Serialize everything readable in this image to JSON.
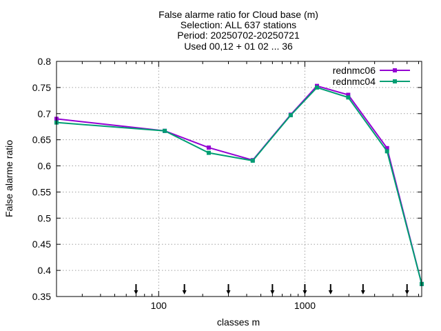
{
  "chart_data": {
    "type": "line",
    "title_lines": [
      "False alarme ratio  for Cloud base (m)",
      "Selection: ALL    637 stations",
      "Period: 20250702-20250721",
      "Used 00,12 + 01 02 ... 36"
    ],
    "xlabel": "classes m",
    "ylabel": "False alarme ratio",
    "x_scale": "log",
    "xlim": [
      20,
      6300
    ],
    "ylim": [
      0.35,
      0.8
    ],
    "x_ticks": [
      100,
      1000
    ],
    "x_tick_labels": [
      "100",
      "1000"
    ],
    "y_ticks": [
      0.35,
      0.4,
      0.45,
      0.5,
      0.55,
      0.6,
      0.65,
      0.7,
      0.75,
      0.8
    ],
    "y_tick_labels": [
      "0.35",
      "0.4",
      "0.45",
      "0.5",
      "0.55",
      "0.6",
      "0.65",
      "0.7",
      "0.75",
      "0.8"
    ],
    "grid": true,
    "legend_position": "top-right",
    "x": [
      20,
      110,
      220,
      440,
      800,
      1210,
      1980,
      3650,
      6300
    ],
    "series": [
      {
        "name": "rednmc06",
        "color": "#9400d3",
        "values": [
          0.69,
          0.667,
          0.635,
          0.611,
          0.698,
          0.753,
          0.736,
          0.634,
          0.374
        ]
      },
      {
        "name": "rednmc04",
        "color": "#009e73",
        "values": [
          0.683,
          0.667,
          0.625,
          0.61,
          0.697,
          0.75,
          0.731,
          0.628,
          0.374
        ]
      }
    ],
    "class_markers_x": [
      70,
      150,
      300,
      600,
      1000,
      1500,
      2500,
      5000
    ]
  }
}
